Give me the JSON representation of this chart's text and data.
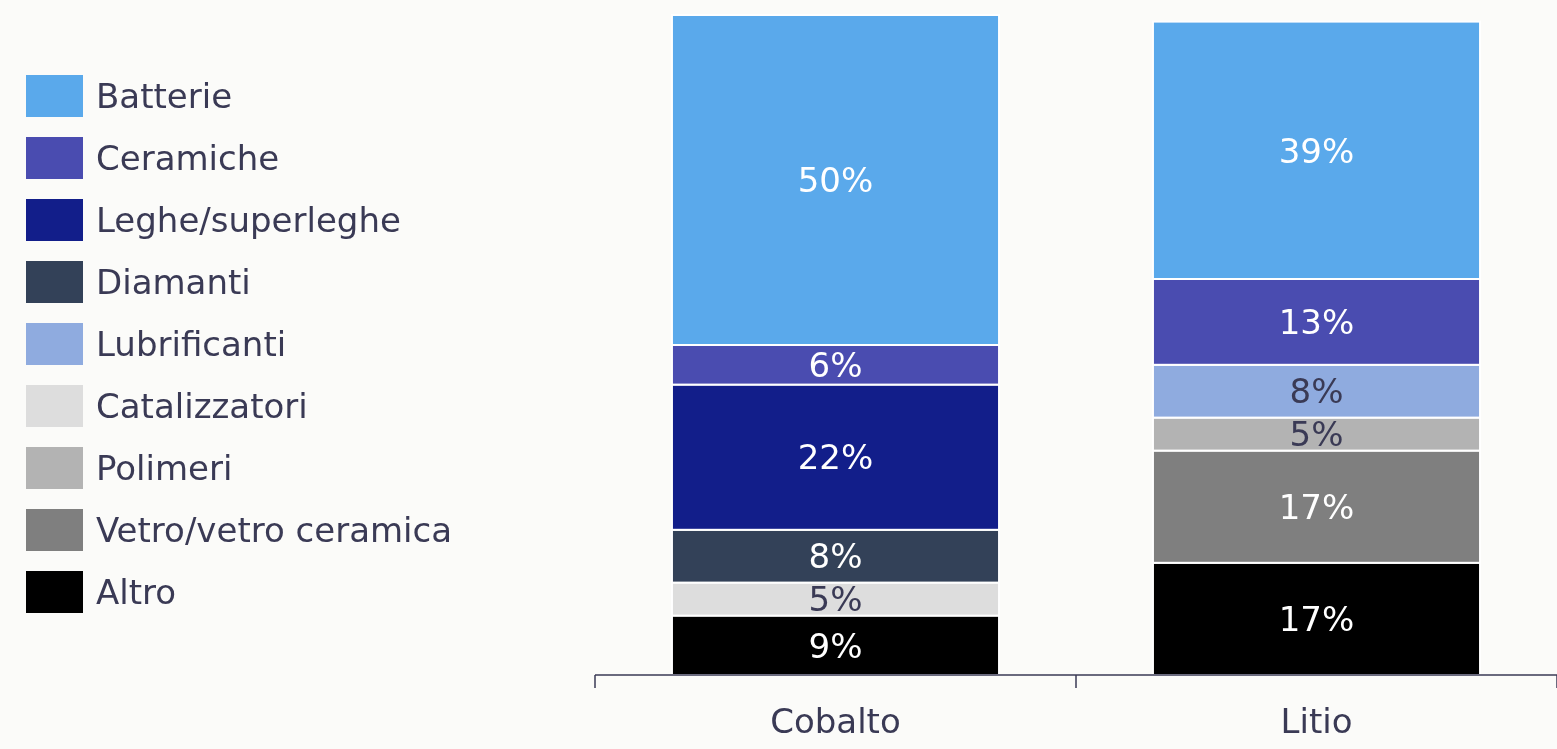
{
  "chart_data": {
    "type": "bar",
    "stacked": true,
    "categories": [
      "Cobalto",
      "Litio"
    ],
    "ylim": [
      0,
      100
    ],
    "tick_labels": "x",
    "legend": "left",
    "series": [
      {
        "name": "Altro",
        "color": "#000000",
        "values": [
          9,
          17
        ],
        "value_labels": [
          "9%",
          "17%"
        ]
      },
      {
        "name": "Vetro/vetro ceramica",
        "color": "#7f7f7f",
        "values": [
          null,
          17
        ],
        "value_labels": [
          null,
          "17%"
        ]
      },
      {
        "name": "Polimeri",
        "color": "#b3b3b3",
        "values": [
          null,
          5
        ],
        "value_labels": [
          null,
          "5%"
        ]
      },
      {
        "name": "Catalizzatori",
        "color": "#dddddd",
        "values": [
          5,
          null
        ],
        "value_labels": [
          "5%",
          null
        ]
      },
      {
        "name": "Lubrificanti",
        "color": "#8fabdf",
        "values": [
          null,
          8
        ],
        "value_labels": [
          null,
          "8%"
        ]
      },
      {
        "name": "Diamanti",
        "color": "#334158",
        "values": [
          8,
          null
        ],
        "value_labels": [
          "8%",
          null
        ]
      },
      {
        "name": "Leghe/superleghe",
        "color": "#121e8a",
        "values": [
          22,
          null
        ],
        "value_labels": [
          "22%",
          null
        ]
      },
      {
        "name": "Ceramiche",
        "color": "#4a4cb0",
        "values": [
          6,
          13
        ],
        "value_labels": [
          "6%",
          "13%"
        ]
      },
      {
        "name": "Batterie",
        "color": "#5aa9eb",
        "values": [
          50,
          39
        ],
        "value_labels": [
          "50%",
          "39%"
        ]
      }
    ]
  }
}
